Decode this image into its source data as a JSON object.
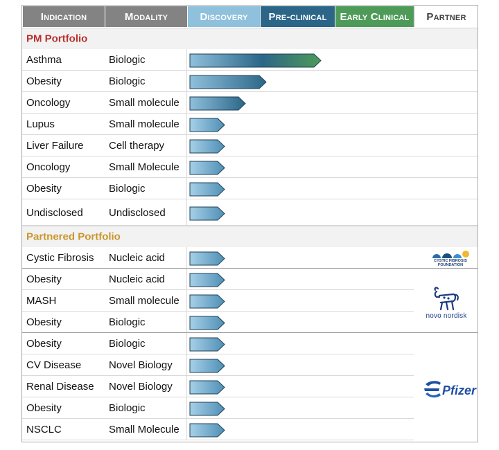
{
  "header": {
    "indication": "Indication",
    "modality": "Modality",
    "discovery": "Discovery",
    "preclinical": "Pre-clinical",
    "early_clinical": "Early Clinical",
    "partner": "Partner"
  },
  "colors": {
    "discovery": "#8fc0dc",
    "preclinical": "#2b6688",
    "early_clinical": "#4e9a58",
    "pm_section": "#b8312f",
    "partnered_section": "#c8962a"
  },
  "pm_portfolio": {
    "title": "PM Portfolio",
    "rows": [
      {
        "indication": "Asthma",
        "modality": "Biologic",
        "stage": "Early Clinical",
        "progress": 0.64
      },
      {
        "indication": "Obesity",
        "modality": "Biologic",
        "stage": "Pre-clinical",
        "progress": 0.37
      },
      {
        "indication": "Oncology",
        "modality": "Small molecule",
        "stage": "Pre-clinical",
        "progress": 0.27
      },
      {
        "indication": "Lupus",
        "modality": "Small molecule",
        "stage": "Discovery",
        "progress": 0.17
      },
      {
        "indication": "Liver Failure",
        "modality": "Cell therapy",
        "stage": "Discovery",
        "progress": 0.17
      },
      {
        "indication": "Oncology",
        "modality": "Small Molecule",
        "stage": "Discovery",
        "progress": 0.17
      },
      {
        "indication": "Obesity",
        "modality": "Biologic",
        "stage": "Discovery",
        "progress": 0.17
      },
      {
        "indication": "Undisclosed",
        "modality": "Undisclosed",
        "stage": "Discovery",
        "progress": 0.17
      }
    ]
  },
  "partnered_portfolio": {
    "title": "Partnered Portfolio",
    "groups": [
      {
        "partner": "cystic-fibrosis-foundation",
        "logo_text": [
          "CYSTIC FIBROSIS",
          "FOUNDATION"
        ],
        "rows": [
          {
            "indication": "Cystic Fibrosis",
            "modality": "Nucleic acid",
            "stage": "Discovery",
            "progress": 0.17
          }
        ]
      },
      {
        "partner": "novo-nordisk",
        "logo_text": [
          "novo nordisk"
        ],
        "rows": [
          {
            "indication": "Obesity",
            "modality": "Nucleic acid",
            "stage": "Discovery",
            "progress": 0.17
          },
          {
            "indication": "MASH",
            "modality": "Small molecule",
            "stage": "Discovery",
            "progress": 0.17
          },
          {
            "indication": "Obesity",
            "modality": "Biologic",
            "stage": "Discovery",
            "progress": 0.17
          }
        ]
      },
      {
        "partner": "pfizer",
        "logo_text": [
          "Pfizer"
        ],
        "rows": [
          {
            "indication": "Obesity",
            "modality": "Biologic",
            "stage": "Discovery",
            "progress": 0.17
          },
          {
            "indication": "CV Disease",
            "modality": "Novel Biology",
            "stage": "Discovery",
            "progress": 0.17
          },
          {
            "indication": "Renal Disease",
            "modality": "Novel Biology",
            "stage": "Discovery",
            "progress": 0.17
          },
          {
            "indication": "Obesity",
            "modality": "Biologic",
            "stage": "Discovery",
            "progress": 0.17
          },
          {
            "indication": "NSCLC",
            "modality": "Small Molecule",
            "stage": "Discovery",
            "progress": 0.17
          }
        ]
      }
    ]
  }
}
